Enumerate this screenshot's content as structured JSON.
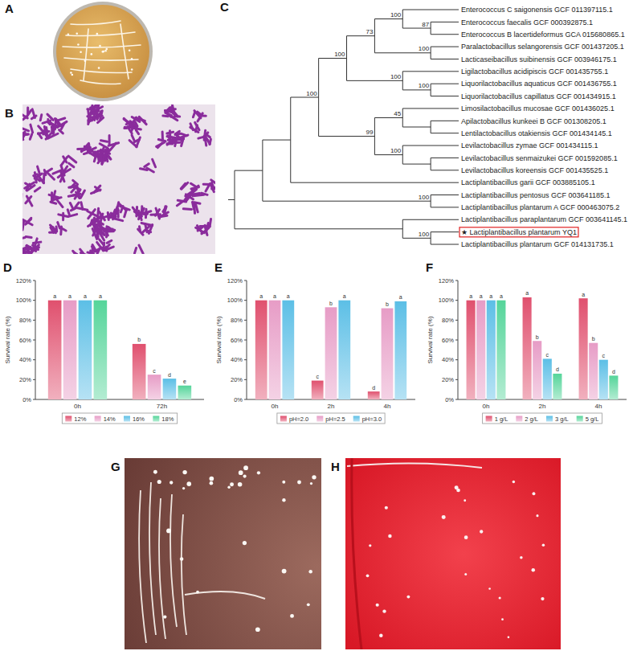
{
  "panel_labels": [
    "A",
    "B",
    "C",
    "D",
    "E",
    "F",
    "G",
    "H"
  ],
  "tree": {
    "root": {
      "children": [
        {
          "children": [
            {
              "children": [
                {
                  "support": 100,
                  "children": [
                    {
                      "support": 100,
                      "children": [
                        {
                          "support": 73,
                          "children": [
                            {
                              "support": 100,
                              "children": [
                                {
                                  "label": "Enterococcus C saigonensis GCF 011397115.1"
                                },
                                {
                                  "support": 87,
                                  "children": [
                                    {
                                      "label": "Enterococcus faecalis GCF 000392875.1"
                                    },
                                    {
                                      "label": "Enterococcus B lacertideformus GCA 015680865.1"
                                    }
                                  ]
                                }
                              ]
                            },
                            {
                              "support": 100,
                              "children": [
                                {
                                  "label": "Paralactobacillus selangorensis GCF 001437205.1"
                                },
                                {
                                  "label": "Lacticaseibacillus suibinensis GCF 003946175.1"
                                }
                              ]
                            }
                          ]
                        },
                        {
                          "support": 100,
                          "children": [
                            {
                              "label": "Ligilactobacillus acidipiscis GCF 001435755.1"
                            },
                            {
                              "support": 100,
                              "children": [
                                {
                                  "label": "Liquorilactobacillus aquaticus GCF 001436755.1"
                                },
                                {
                                  "label": "Liquorilactobacillus capillatus GCF 001434915.1"
                                }
                              ]
                            }
                          ]
                        }
                      ]
                    },
                    {
                      "support": 99,
                      "children": [
                        {
                          "support": 45,
                          "children": [
                            {
                              "label": "Limosilactobacillus mucosae GCF 001436025.1"
                            },
                            {
                              "children": [
                                {
                                  "label": "Apilactobacillus kunkeei B GCF 001308205.1"
                                },
                                {
                                  "label": "Lentilactobacillus otakiensis GCF 001434145.1"
                                }
                              ]
                            }
                          ]
                        },
                        {
                          "support": 100,
                          "children": [
                            {
                              "label": "Levilactobacillus zymae GCF 001434115.1"
                            },
                            {
                              "children": [
                                {
                                  "label": "Levilactobacillus senmaizukei GCF 001592085.1"
                                },
                                {
                                  "label": "Levilactobacillus koreensis GCF 001435525.1"
                                }
                              ]
                            }
                          ]
                        }
                      ]
                    }
                  ]
                },
                {
                  "label": "Lactiplantibacillus garii GCF 003885105.1"
                }
              ]
            },
            {
              "support": 100,
              "children": [
                {
                  "label": "Lactiplantibacillus pentosus GCF 003641185.1"
                },
                {
                  "label": "Lactiplantibacillus plantarum A GCF 000463075.2"
                }
              ]
            }
          ]
        },
        {
          "children": [
            {
              "label": "Lactiplantibacillus paraplantarum GCF 003641145.1"
            },
            {
              "support": 100,
              "children": [
                {
                  "label": "★ Lactiplantibacillus plantarum YQ1",
                  "highlight": true
                },
                {
                  "label": "Lactiplantibacillus plantarum GCF 014131735.1"
                }
              ]
            }
          ]
        }
      ]
    }
  },
  "chart_data": [
    {
      "type": "bar",
      "categories": [
        "0h",
        "72h"
      ],
      "ylabel": "Survival rate (%)",
      "ylim": [
        0,
        120
      ],
      "yticks": [
        {
          "value": 0,
          "label": "0%"
        },
        {
          "value": 20,
          "label": "20%"
        },
        {
          "value": 40,
          "label": "40%"
        },
        {
          "value": 60,
          "label": "60%"
        },
        {
          "value": 80,
          "label": "80%"
        },
        {
          "value": 100,
          "label": "100%"
        },
        {
          "value": 120,
          "label": "120%"
        }
      ],
      "grid": false,
      "legend": "bottom",
      "series": [
        {
          "name": "12%",
          "color": "#e0506e",
          "values": [
            100,
            56
          ],
          "letters": [
            "a",
            "b"
          ]
        },
        {
          "name": "14%",
          "color": "#e79cc6",
          "values": [
            100,
            25
          ],
          "letters": [
            "a",
            "c"
          ]
        },
        {
          "name": "16%",
          "color": "#5cbfe6",
          "values": [
            100,
            21
          ],
          "letters": [
            "a",
            "d"
          ]
        },
        {
          "name": "18%",
          "color": "#55d59a",
          "values": [
            100,
            14
          ],
          "letters": [
            "a",
            "e"
          ]
        }
      ]
    },
    {
      "type": "bar",
      "categories": [
        "0h",
        "2h",
        "4h"
      ],
      "ylabel": "Survival rate (%)",
      "ylim": [
        0,
        120
      ],
      "yticks": [
        {
          "value": 0,
          "label": "0%"
        },
        {
          "value": 20,
          "label": "20%"
        },
        {
          "value": 40,
          "label": "40%"
        },
        {
          "value": 60,
          "label": "60%"
        },
        {
          "value": 80,
          "label": "80%"
        },
        {
          "value": 100,
          "label": "100%"
        },
        {
          "value": 120,
          "label": "120%"
        }
      ],
      "grid": false,
      "legend": "bottom",
      "series": [
        {
          "name": "pH=2.0",
          "color": "#e0506e",
          "values": [
            100,
            19,
            8
          ],
          "letters": [
            "a",
            "c",
            "d"
          ]
        },
        {
          "name": "pH=2.5",
          "color": "#e79cc6",
          "values": [
            100,
            93,
            92
          ],
          "letters": [
            "a",
            "b",
            "b"
          ]
        },
        {
          "name": "pH=3.0",
          "color": "#5cbfe6",
          "values": [
            100,
            100,
            99
          ],
          "letters": [
            "a",
            "a",
            "a"
          ]
        }
      ]
    },
    {
      "type": "bar",
      "categories": [
        "0h",
        "2h",
        "4h"
      ],
      "ylabel": "Survival rate (%)",
      "ylim": [
        0,
        120
      ],
      "yticks": [
        {
          "value": 0,
          "label": "0%"
        },
        {
          "value": 20,
          "label": "20%"
        },
        {
          "value": 40,
          "label": "40%"
        },
        {
          "value": 60,
          "label": "60%"
        },
        {
          "value": 80,
          "label": "80%"
        },
        {
          "value": 100,
          "label": "100%"
        },
        {
          "value": 120,
          "label": "120%"
        }
      ],
      "grid": false,
      "legend": "bottom",
      "series": [
        {
          "name": "1 g/L",
          "color": "#e0506e",
          "values": [
            100,
            103,
            102
          ],
          "letters": [
            "a",
            "a",
            "a"
          ]
        },
        {
          "name": "2 g/L",
          "color": "#e79cc6",
          "values": [
            100,
            59,
            57
          ],
          "letters": [
            "a",
            "b",
            "b"
          ]
        },
        {
          "name": "3 g/L",
          "color": "#5cbfe6",
          "values": [
            100,
            41,
            40
          ],
          "letters": [
            "a",
            "c",
            "c"
          ]
        },
        {
          "name": "5 g/L",
          "color": "#55d59a",
          "values": [
            100,
            26,
            24
          ],
          "letters": [
            "a",
            "d",
            "d"
          ]
        }
      ]
    }
  ]
}
